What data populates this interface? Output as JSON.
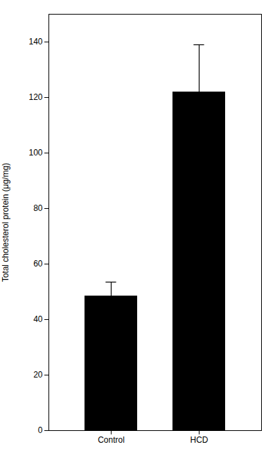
{
  "chart_data": {
    "type": "bar",
    "categories": [
      "Control",
      "HCD"
    ],
    "values": [
      48.5,
      122.0
    ],
    "errors": [
      5.0,
      17.0
    ],
    "color": "#000000",
    "ylabel": "Total cholesterol protein (μg/mg)",
    "ylim": [
      0,
      150
    ],
    "yticks": [
      0,
      20,
      40,
      60,
      80,
      100,
      120,
      140
    ]
  }
}
